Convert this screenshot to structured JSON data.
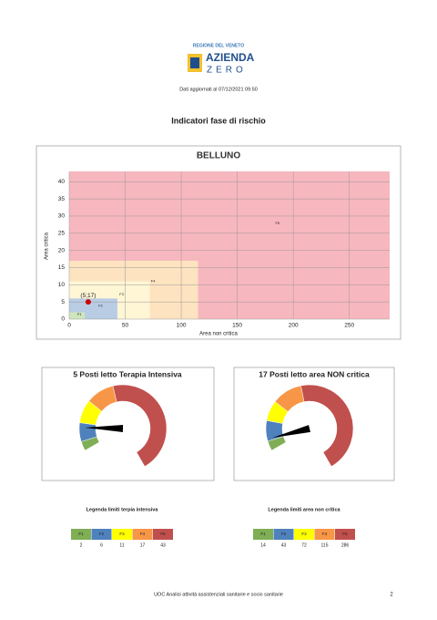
{
  "header": {
    "region": "REGIONE DEL VENETO",
    "org_line1": "AZIENDA",
    "org_line2": "ZERO",
    "updated": "Dati aggiornati al 07/12/2021 09.50"
  },
  "title": "Indicatori fase di rischio",
  "chart_data": [
    {
      "type": "zones",
      "title": "BELLUNO",
      "xlabel": "Area non critica",
      "ylabel": "Area critica",
      "xlim": [
        0,
        286
      ],
      "ylim": [
        0,
        43
      ],
      "xticks": [
        0,
        50,
        100,
        150,
        200,
        250
      ],
      "yticks": [
        0,
        5,
        10,
        15,
        20,
        25,
        30,
        35,
        40
      ],
      "grid": true,
      "point": {
        "x": 17,
        "y": 5,
        "label": "(5;17)",
        "color": "#cc0000"
      }
    },
    {
      "type": "gauge",
      "title": "5 Posti letto Terapia Intensiva",
      "value": 5,
      "legend_title": "Legenda limiti terpia intensiva",
      "bands": [
        {
          "name": "F1",
          "color": "#7fae55",
          "zone_color": "#cfe6bd",
          "limit": 2
        },
        {
          "name": "F2",
          "color": "#4f81bd",
          "zone_color": "#b8cce4",
          "limit": 6
        },
        {
          "name": "F3",
          "color": "#ffff00",
          "zone_color": "#fff6d5",
          "limit": 11
        },
        {
          "name": "F4",
          "color": "#f79646",
          "zone_color": "#fde3c0",
          "limit": 17
        },
        {
          "name": "F5",
          "color": "#c0504d",
          "zone_color": "#f7b7bf",
          "limit": 43
        }
      ]
    },
    {
      "type": "gauge",
      "title": "17 Posti letto area NON critica",
      "value": 17,
      "legend_title": "Legenda limiti area non critica",
      "bands": [
        {
          "name": "F1",
          "color": "#7fae55",
          "zone_color": "#cfe6bd",
          "limit": 14
        },
        {
          "name": "F2",
          "color": "#4f81bd",
          "zone_color": "#b8cce4",
          "limit": 43
        },
        {
          "name": "F3",
          "color": "#ffff00",
          "zone_color": "#fff6d5",
          "limit": 72
        },
        {
          "name": "F4",
          "color": "#f79646",
          "zone_color": "#fde3c0",
          "limit": 115
        },
        {
          "name": "F5",
          "color": "#c0504d",
          "zone_color": "#f7b7bf",
          "limit": 286
        }
      ]
    }
  ],
  "footer": "UOC Analisi attività assistenziali sanitarie e socio sanitarie",
  "page_number": "2"
}
